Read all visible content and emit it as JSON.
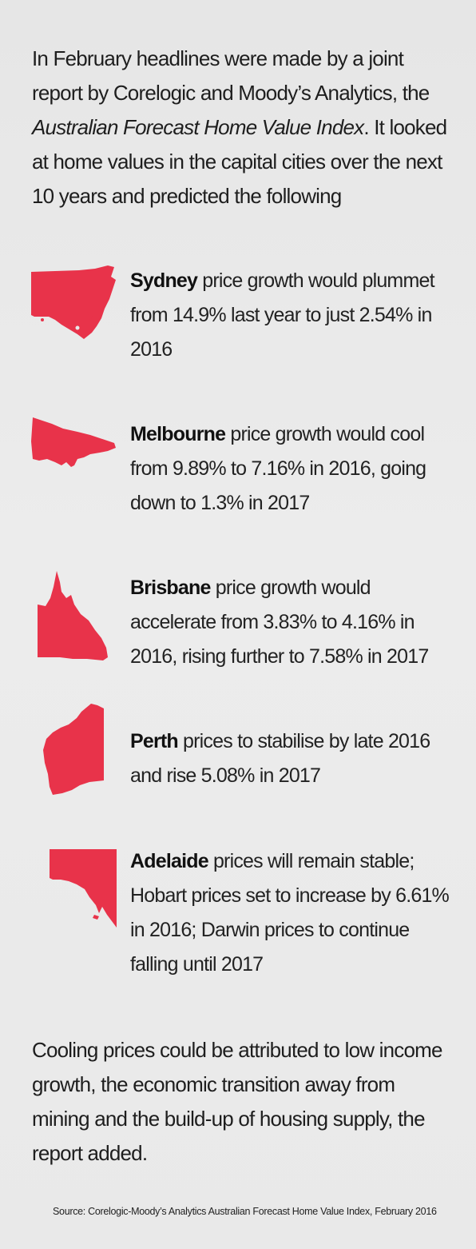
{
  "intro": {
    "before_italic": "In February headlines were made by a joint report by Corelogic and Moody’s Analytics, the ",
    "italic": "Australian Forecast Home Value Index",
    "after_italic": ". It looked at home values in the capital cities over the next 10 years and predicted the following"
  },
  "colors": {
    "map_fill": "#e8334a",
    "background": "#e8e8e8",
    "text": "#1e1e1e"
  },
  "cities": [
    {
      "name": "Sydney",
      "state_icon": "nsw-map-icon",
      "text": " price growth would plummet from 14.9% last year to just 2.54% in 2016"
    },
    {
      "name": "Melbourne",
      "state_icon": "vic-map-icon",
      "text": " price growth would cool from 9.89% to 7.16% in 2016, going down to 1.3% in 2017"
    },
    {
      "name": "Brisbane",
      "state_icon": "qld-map-icon",
      "text": " price growth would accelerate from 3.83% to 4.16% in 2016, rising further to 7.58% in 2017"
    },
    {
      "name": "Perth",
      "state_icon": "wa-map-icon",
      "text": " prices to stabilise by late 2016 and rise 5.08% in 2017"
    },
    {
      "name": "Adelaide",
      "state_icon": "sa-map-icon",
      "text": " prices will remain stable; Hobart prices set to increase by 6.61% in 2016; Darwin prices to continue falling until 2017"
    }
  ],
  "outro": "Cooling prices could be attributed to low income growth, the economic transition away from mining and the build-up of housing supply, the report added.",
  "source": "Source: Corelogic-Moody’s Analytics Australian Forecast Home Value Index, February 2016"
}
